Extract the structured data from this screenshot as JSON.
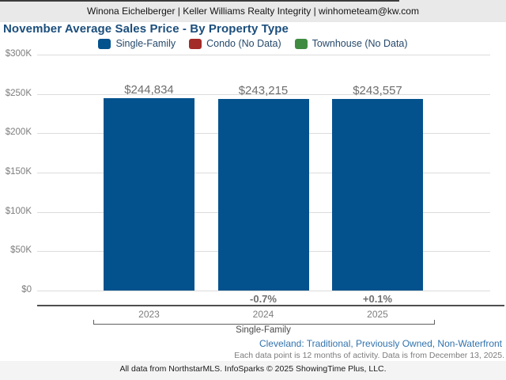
{
  "header": {
    "text": "Winona Eichelberger | Keller Williams Realty Integrity | winhometeam@kw.com"
  },
  "title": "November Average Sales Price - By Property Type",
  "legend": [
    {
      "label": "Single-Family",
      "color": "#04528d"
    },
    {
      "label": "Condo (No Data)",
      "color": "#a32b28"
    },
    {
      "label": "Townhouse (No Data)",
      "color": "#3f8c41"
    }
  ],
  "chart_data": {
    "type": "bar",
    "title": "November Average Sales Price - By Property Type",
    "categories": [
      "2023",
      "2024",
      "2025"
    ],
    "series": [
      {
        "name": "Single-Family",
        "values": [
          244834,
          243215,
          243557
        ]
      }
    ],
    "value_labels": [
      "$244,834",
      "$243,215",
      "$243,557"
    ],
    "change_labels": [
      "",
      "-0.7%",
      "+0.1%"
    ],
    "y_ticks": [
      "$300K",
      "$250K",
      "$200K",
      "$150K",
      "$100K",
      "$50K",
      "$0"
    ],
    "ylim": [
      0,
      300000
    ],
    "grid": true,
    "legend_position": "top",
    "group_label": "Single-Family",
    "bar_color": "#04528d"
  },
  "footer": {
    "filters": "Cleveland: Traditional, Previously Owned, Non-Waterfront",
    "data_note": "Each data point is 12 months of activity. Data is from December 13, 2025.",
    "attribution": "All data from NorthstarMLS. InfoSparks © 2025 ShowingTime Plus, LLC."
  }
}
